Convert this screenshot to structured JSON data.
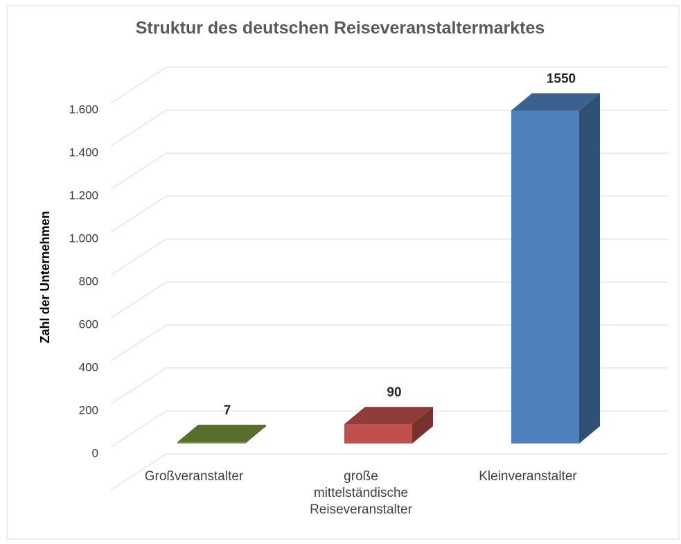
{
  "chart_data": {
    "type": "bar3d",
    "title": "Struktur des deutschen Reiseveranstaltermarktes",
    "y_label": "Zahl der Unternehmen",
    "categories": [
      "Großveranstalter",
      "große mittelständische Reiseveranstalter",
      "Kleinveranstalter"
    ],
    "values": [
      7,
      90,
      1550
    ],
    "colors": [
      "#77933c",
      "#c0504d",
      "#4f81bd"
    ],
    "ylim": [
      0,
      1800
    ],
    "yticks": [
      0,
      200,
      400,
      600,
      800,
      {
        "value": 1000,
        "label": "1.000"
      },
      {
        "value": 1200,
        "label": "1.200"
      },
      {
        "value": 1400,
        "label": "1.400"
      },
      {
        "value": 1600,
        "label": "1.600"
      }
    ],
    "grid": true
  }
}
